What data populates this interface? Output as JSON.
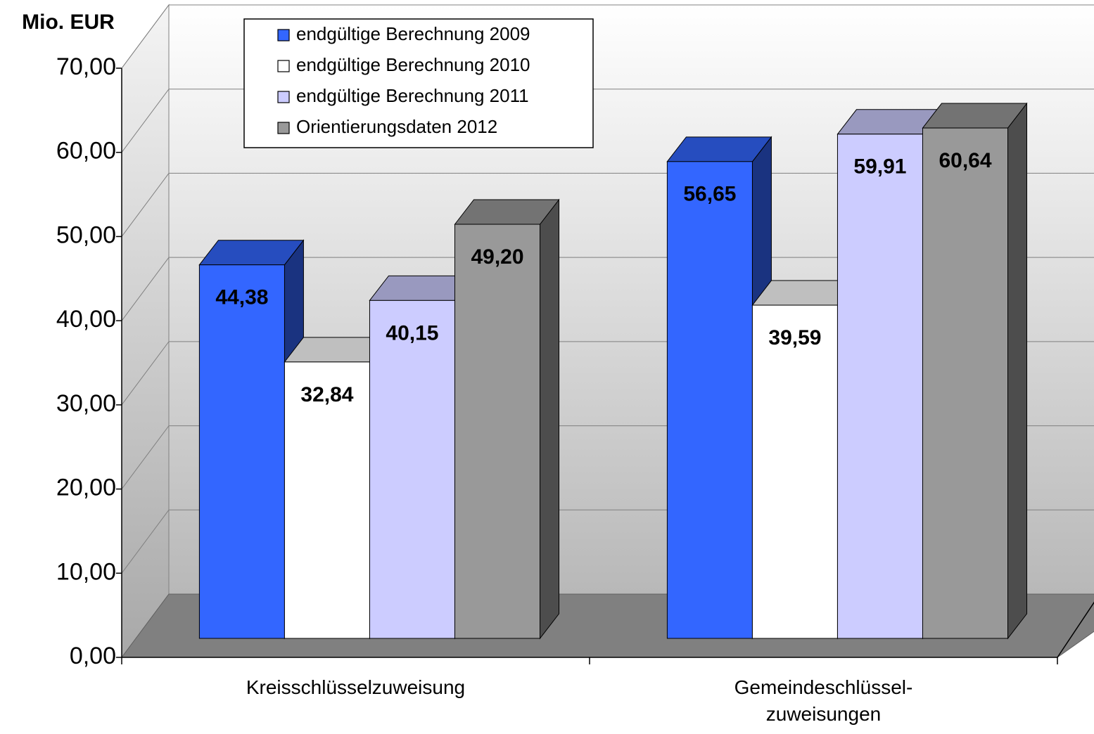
{
  "chart_data": {
    "type": "bar3d",
    "y_axis_label": "Mio. EUR",
    "categories": [
      "Kreisschlüsselzuweisung",
      "Gemeindeschlüssel-\nzuweisungen"
    ],
    "series": [
      {
        "name": "endgültige Berechnung 2009",
        "color": "#3366ff",
        "values": [
          44.38,
          56.65
        ],
        "value_labels": [
          "44,38",
          "56,65"
        ]
      },
      {
        "name": "endgültige Berechnung 2010",
        "color": "#ffffff",
        "values": [
          32.84,
          39.59
        ],
        "value_labels": [
          "32,84",
          "39,59"
        ]
      },
      {
        "name": "endgültige Berechnung 2011",
        "color": "#ccccff",
        "values": [
          40.15,
          59.91
        ],
        "value_labels": [
          "40,15",
          "59,91"
        ]
      },
      {
        "name": "Orientierungsdaten 2012",
        "color": "#999999",
        "values": [
          49.2,
          60.64
        ],
        "value_labels": [
          "49,20",
          "60,64"
        ]
      }
    ],
    "ylim": [
      0,
      70
    ],
    "yticks": [
      {
        "value": 0,
        "label": "0,00"
      },
      {
        "value": 10,
        "label": "10,00"
      },
      {
        "value": 20,
        "label": "20,00"
      },
      {
        "value": 30,
        "label": "30,00"
      },
      {
        "value": 40,
        "label": "40,00"
      },
      {
        "value": 50,
        "label": "50,00"
      },
      {
        "value": 60,
        "label": "60,00"
      },
      {
        "value": 70,
        "label": "70,00"
      }
    ],
    "grid": true
  }
}
